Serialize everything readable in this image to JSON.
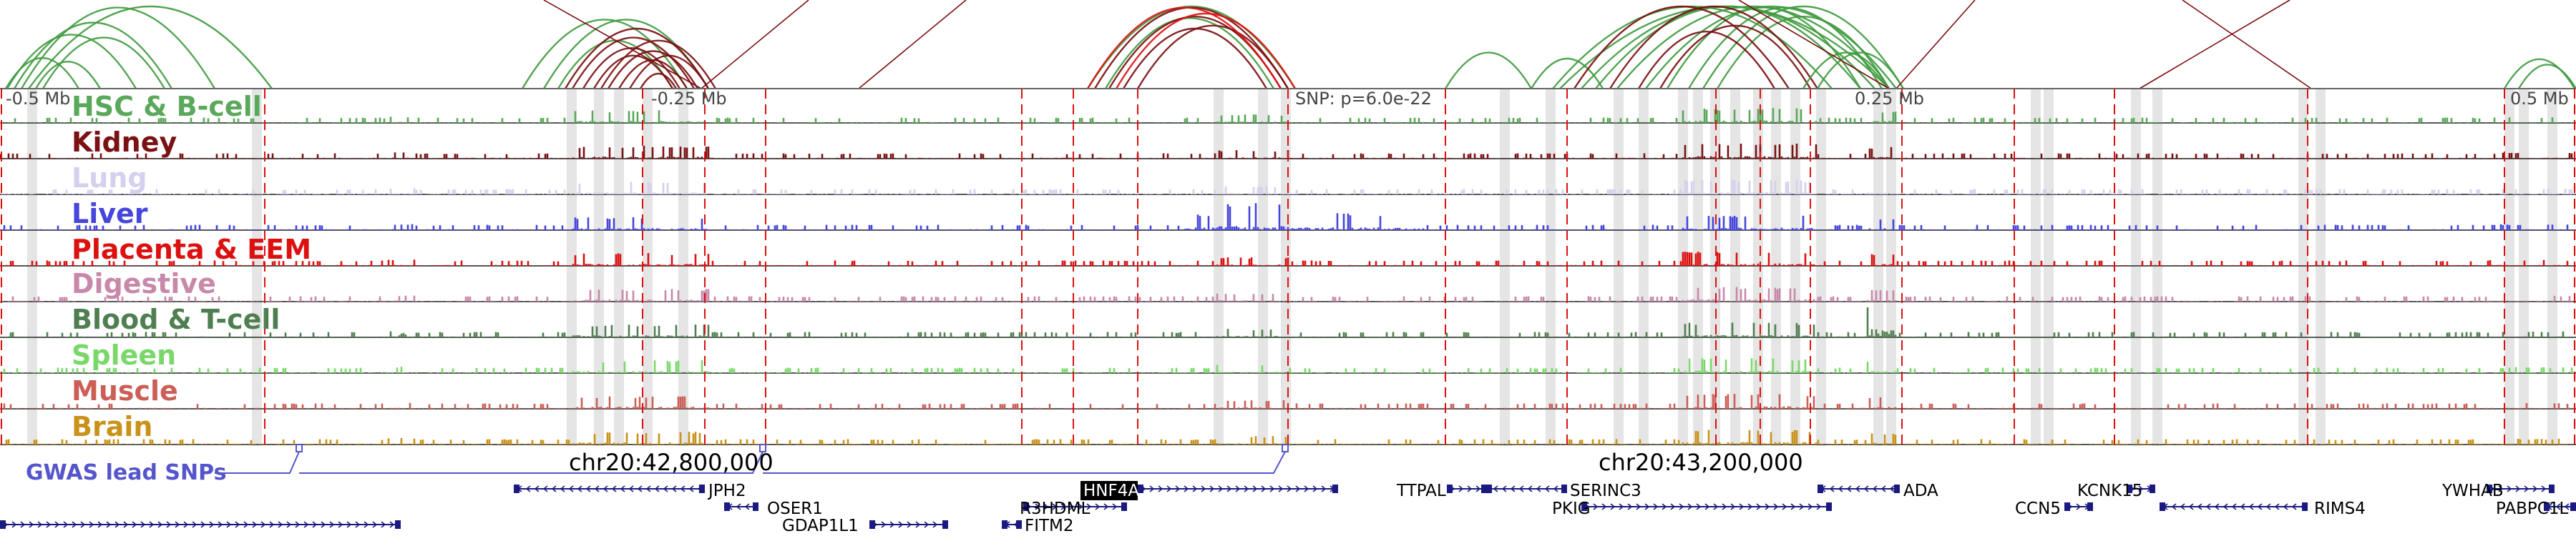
{
  "scale_labels": {
    "left_far": "-0.5 Mb",
    "left_near": "-0.25 Mb",
    "snp": "SNP: p=6.0e-22",
    "right_near": "0.25 Mb",
    "right_far": "0.5 Mb"
  },
  "tracks": [
    {
      "id": "hsc",
      "label": "HSC & B-cell",
      "color": "#5aa85a"
    },
    {
      "id": "kidney",
      "label": "Kidney",
      "color": "#7a1214"
    },
    {
      "id": "lung",
      "label": "Lung",
      "color": "#d4d0ee"
    },
    {
      "id": "liver",
      "label": "Liver",
      "color": "#4646dc"
    },
    {
      "id": "placenta",
      "label": "Placenta & EEM",
      "color": "#dd1010"
    },
    {
      "id": "digestive",
      "label": "Digestive",
      "color": "#c888aa"
    },
    {
      "id": "blood",
      "label": "Blood & T-cell",
      "color": "#4f7f50"
    },
    {
      "id": "spleen",
      "label": "Spleen",
      "color": "#7ad86a"
    },
    {
      "id": "muscle",
      "label": "Muscle",
      "color": "#cc5e56"
    },
    {
      "id": "brain",
      "label": "Brain",
      "color": "#c99218"
    }
  ],
  "gwas_label": "GWAS lead SNPs",
  "gwas_color": "#5555cc",
  "coordinates": [
    "chr20:42,800,000",
    "chr20:43,200,000"
  ],
  "genes": [
    {
      "name": "JPH2",
      "highlight": false
    },
    {
      "name": "OSER1",
      "highlight": false
    },
    {
      "name": "GDAP1L1",
      "highlight": false
    },
    {
      "name": "R3HDML",
      "highlight": false
    },
    {
      "name": "HNF4A",
      "highlight": true
    },
    {
      "name": "FITM2",
      "highlight": false
    },
    {
      "name": "TTPAL",
      "highlight": false
    },
    {
      "name": "SERINC3",
      "highlight": false
    },
    {
      "name": "PKIG",
      "highlight": false
    },
    {
      "name": "ADA",
      "highlight": false
    },
    {
      "name": "CCN5",
      "highlight": false
    },
    {
      "name": "KCNK15",
      "highlight": false
    },
    {
      "name": "RIMS4",
      "highlight": false
    },
    {
      "name": "YWHAB",
      "highlight": false
    },
    {
      "name": "PABPC1L",
      "highlight": false
    }
  ],
  "colors": {
    "gene": "#1a1a80",
    "marker": "#dd1010",
    "highlight_band": "#dcdcdc"
  }
}
